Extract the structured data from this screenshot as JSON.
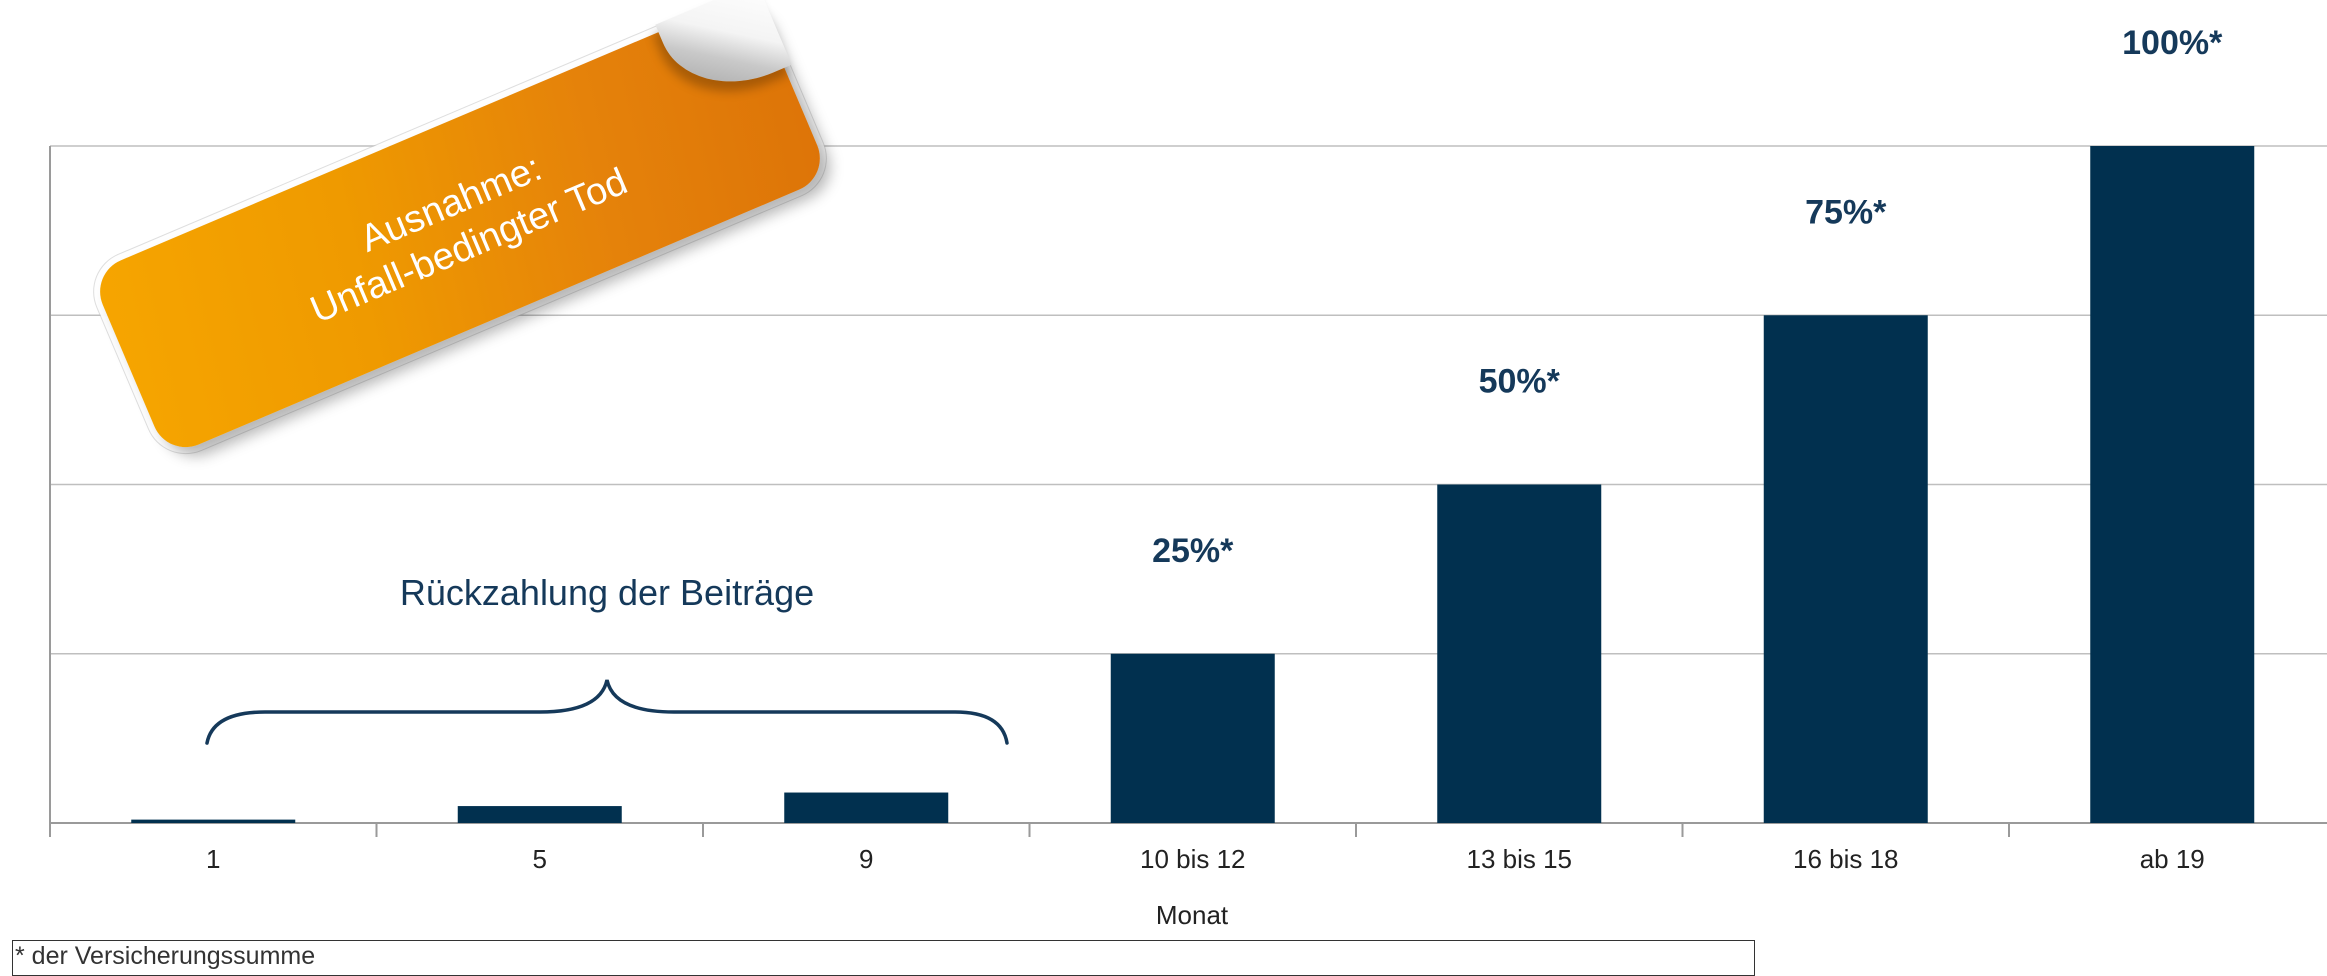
{
  "chart_data": {
    "type": "bar",
    "categories": [
      "1",
      "5",
      "9",
      "10 bis 12",
      "13 bis 15",
      "16 bis 18",
      "ab 19"
    ],
    "values": [
      0.5,
      2.5,
      4.5,
      25,
      50,
      75,
      100
    ],
    "data_labels": [
      "",
      "",
      "",
      "25%*",
      "50%*",
      "75%*",
      "100%*"
    ],
    "xlabel": "Monat",
    "ylabel": "",
    "title": "",
    "ylim": [
      0,
      100
    ],
    "gridlines": [
      0,
      25,
      50,
      75,
      100
    ],
    "grid": true,
    "bar_color": "#01304f",
    "annotations": {
      "brace_label": "Rückzahlung der Beiträge",
      "sticker_line1": "Ausnahme:",
      "sticker_line2": "Unfall-bedingter Tod"
    }
  },
  "footnote": "* der Versicherungssumme",
  "colors": {
    "bar": "#01304f",
    "label": "#15395a",
    "grid": "#bfbfbf",
    "sticker_start": "#f6a500",
    "sticker_end": "#dd7408"
  }
}
